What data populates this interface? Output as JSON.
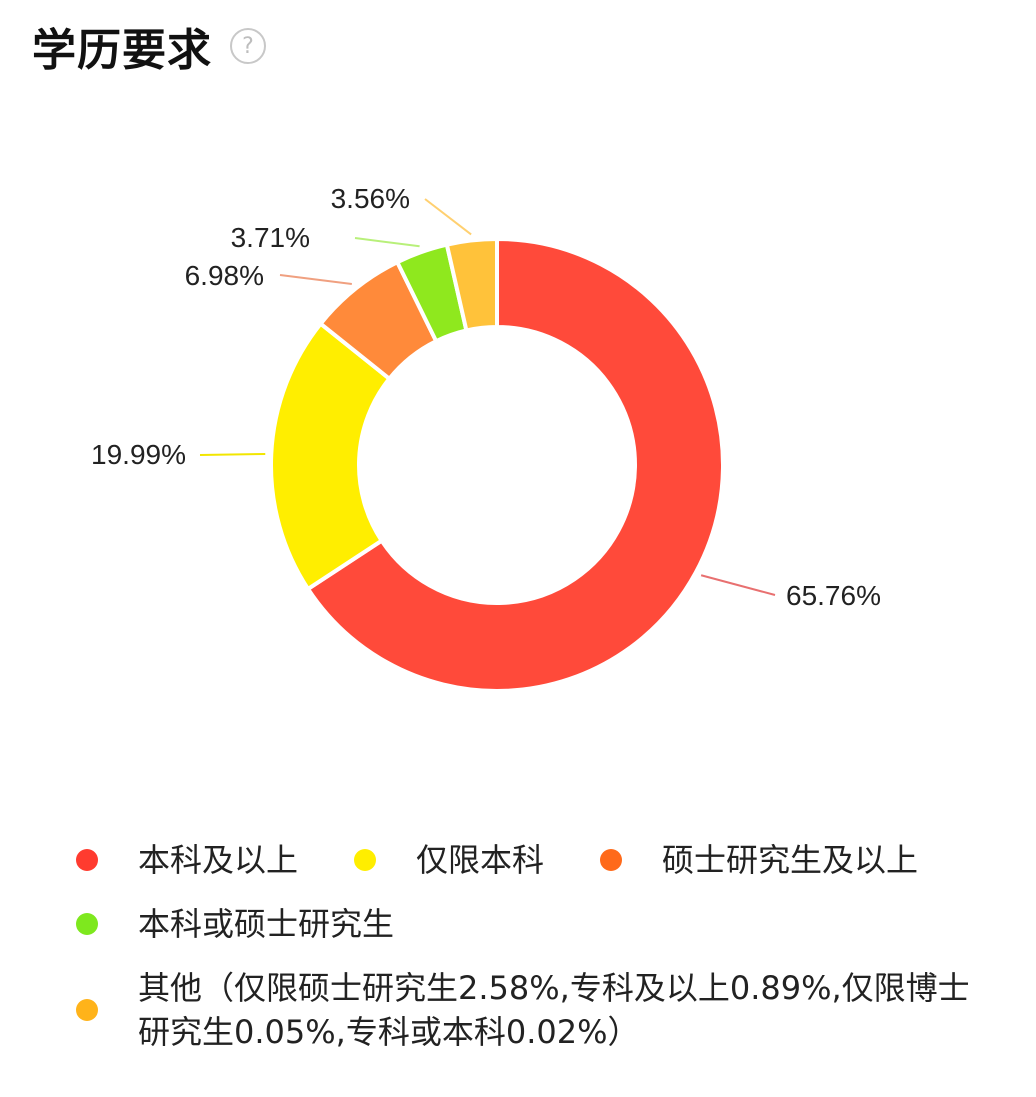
{
  "header": {
    "title": "学历要求",
    "help_icon": "question-circle-icon",
    "help_glyph": "?"
  },
  "chart_data": {
    "type": "pie",
    "donut": true,
    "slices": [
      {
        "name": "本科及以上",
        "value": 65.76,
        "label": "65.76%",
        "color": "#ff4a3a"
      },
      {
        "name": "仅限本科",
        "value": 19.99,
        "label": "19.99%",
        "color": "#ffee00"
      },
      {
        "name": "硕士研究生及以上",
        "value": 6.98,
        "label": "6.98%",
        "color": "#ff8a3a"
      },
      {
        "name": "本科或硕士研究生",
        "value": 3.71,
        "label": "3.71%",
        "color": "#8fe81e"
      },
      {
        "name": "其他（仅限硕士研究生2.58%,专科及以上0.89%,仅限博士研究生0.05%,专科或本科0.02%）",
        "value": 3.56,
        "label": "3.56%",
        "color": "#ffc23a"
      }
    ],
    "legend_position": "bottom"
  },
  "legend": {
    "items": [
      {
        "label": "本科及以上",
        "color": "#ff3b2f"
      },
      {
        "label": "仅限本科",
        "color": "#ffee00"
      },
      {
        "label": "硕士研究生及以上",
        "color": "#ff6a1a"
      },
      {
        "label": "本科或硕士研究生",
        "color": "#7ee81e"
      },
      {
        "label": "其他（仅限硕士研究生2.58%,专科及以上0.89%,仅限博士研究生0.05%,专科或本科0.02%）",
        "color": "#ffb31a"
      }
    ]
  }
}
